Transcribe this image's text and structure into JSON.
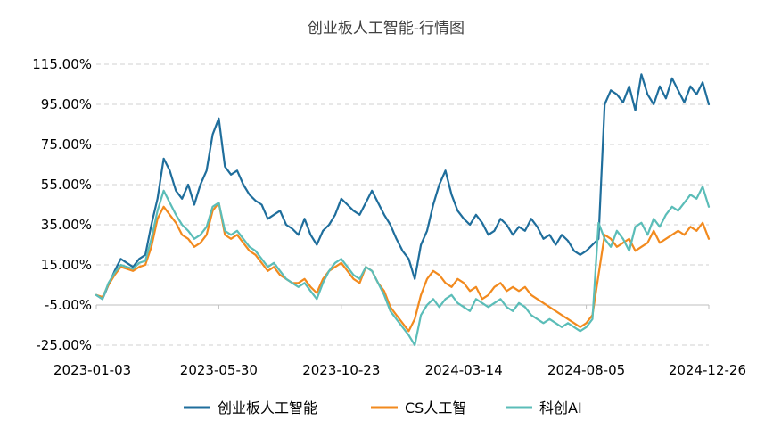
{
  "chart_data": {
    "type": "line",
    "title": "创业板人工智能-行情图",
    "xlabel": "",
    "ylabel": "",
    "ylim": [
      -25,
      115
    ],
    "ytick_values": [
      115,
      95,
      75,
      55,
      35,
      15,
      -5,
      -25
    ],
    "ytick_labels": [
      "115.00%",
      "95.00%",
      "75.00%",
      "55.00%",
      "35.00%",
      "15.00%",
      "-5.00%",
      "-25.00%"
    ],
    "xlim": [
      0,
      100
    ],
    "xtick_values": [
      0,
      20,
      40,
      60,
      80,
      100
    ],
    "xtick_labels": [
      "2023-01-03",
      "2023-05-30",
      "2023-10-23",
      "2024-03-14",
      "2024-08-05",
      "2024-12-26"
    ],
    "legend_position": "bottom",
    "grid": "horizontal-dashed",
    "series": [
      {
        "name": "创业板人工智能",
        "color": "#1f6e9c",
        "x": [
          0,
          1,
          2,
          3,
          4,
          5,
          6,
          7,
          8,
          9,
          10,
          11,
          12,
          13,
          14,
          15,
          16,
          17,
          18,
          19,
          20,
          21,
          22,
          23,
          24,
          25,
          26,
          27,
          28,
          29,
          30,
          31,
          32,
          33,
          34,
          35,
          36,
          37,
          38,
          39,
          40,
          41,
          42,
          43,
          44,
          45,
          46,
          47,
          48,
          49,
          50,
          51,
          52,
          53,
          54,
          55,
          56,
          57,
          58,
          59,
          60,
          61,
          62,
          63,
          64,
          65,
          66,
          67,
          68,
          69,
          70,
          71,
          72,
          73,
          74,
          75,
          76,
          77,
          78,
          79,
          80,
          81,
          82,
          83,
          84,
          85,
          86,
          87,
          88,
          89,
          90,
          91,
          92,
          93,
          94,
          95,
          96,
          97,
          98,
          99,
          100
        ],
        "values": [
          0,
          -2,
          5,
          12,
          18,
          16,
          14,
          18,
          20,
          35,
          48,
          68,
          62,
          52,
          48,
          55,
          45,
          55,
          62,
          80,
          88,
          64,
          60,
          62,
          55,
          50,
          47,
          45,
          38,
          40,
          42,
          35,
          33,
          30,
          38,
          30,
          25,
          32,
          35,
          40,
          48,
          45,
          42,
          40,
          46,
          52,
          46,
          40,
          35,
          28,
          22,
          18,
          8,
          25,
          32,
          45,
          55,
          62,
          50,
          42,
          38,
          35,
          40,
          36,
          30,
          32,
          38,
          35,
          30,
          34,
          32,
          38,
          34,
          28,
          30,
          25,
          30,
          27,
          22,
          20,
          22,
          25,
          28,
          95,
          102,
          100,
          96,
          104,
          92,
          110,
          100,
          95,
          104,
          98,
          108,
          102,
          96,
          104,
          100,
          106,
          95
        ]
      },
      {
        "name": "CS人工智",
        "color": "#f28a1e",
        "x": [
          0,
          1,
          2,
          3,
          4,
          5,
          6,
          7,
          8,
          9,
          10,
          11,
          12,
          13,
          14,
          15,
          16,
          17,
          18,
          19,
          20,
          21,
          22,
          23,
          24,
          25,
          26,
          27,
          28,
          29,
          30,
          31,
          32,
          33,
          34,
          35,
          36,
          37,
          38,
          39,
          40,
          41,
          42,
          43,
          44,
          45,
          46,
          47,
          48,
          49,
          50,
          51,
          52,
          53,
          54,
          55,
          56,
          57,
          58,
          59,
          60,
          61,
          62,
          63,
          64,
          65,
          66,
          67,
          68,
          69,
          70,
          71,
          72,
          73,
          74,
          75,
          76,
          77,
          78,
          79,
          80,
          81,
          82,
          83,
          84,
          85,
          86,
          87,
          88,
          89,
          90,
          91,
          92,
          93,
          94,
          95,
          96,
          97,
          98,
          99,
          100
        ],
        "values": [
          0,
          -1,
          5,
          10,
          14,
          13,
          12,
          14,
          15,
          24,
          38,
          44,
          40,
          36,
          30,
          28,
          24,
          26,
          30,
          42,
          46,
          30,
          28,
          30,
          26,
          22,
          20,
          16,
          12,
          14,
          10,
          8,
          6,
          6,
          8,
          4,
          1,
          8,
          12,
          14,
          16,
          12,
          8,
          6,
          14,
          12,
          6,
          2,
          -6,
          -10,
          -14,
          -18,
          -12,
          0,
          8,
          12,
          10,
          6,
          4,
          8,
          6,
          2,
          4,
          -2,
          0,
          4,
          6,
          2,
          4,
          2,
          4,
          0,
          -2,
          -4,
          -6,
          -8,
          -10,
          -12,
          -14,
          -16,
          -14,
          -10,
          10,
          30,
          28,
          24,
          26,
          28,
          22,
          24,
          26,
          32,
          26,
          28,
          30,
          32,
          30,
          34,
          32,
          36,
          28
        ]
      },
      {
        "name": "科创AI",
        "color": "#5bbdb8",
        "x": [
          0,
          1,
          2,
          3,
          4,
          5,
          6,
          7,
          8,
          9,
          10,
          11,
          12,
          13,
          14,
          15,
          16,
          17,
          18,
          19,
          20,
          21,
          22,
          23,
          24,
          25,
          26,
          27,
          28,
          29,
          30,
          31,
          32,
          33,
          34,
          35,
          36,
          37,
          38,
          39,
          40,
          41,
          42,
          43,
          44,
          45,
          46,
          47,
          48,
          49,
          50,
          51,
          52,
          53,
          54,
          55,
          56,
          57,
          58,
          59,
          60,
          61,
          62,
          63,
          64,
          65,
          66,
          67,
          68,
          69,
          70,
          71,
          72,
          73,
          74,
          75,
          76,
          77,
          78,
          79,
          80,
          81,
          82,
          83,
          84,
          85,
          86,
          87,
          88,
          89,
          90,
          91,
          92,
          93,
          94,
          95,
          96,
          97,
          98,
          99,
          100
        ],
        "values": [
          0,
          -2,
          6,
          11,
          15,
          14,
          13,
          16,
          17,
          28,
          42,
          52,
          46,
          40,
          35,
          32,
          28,
          30,
          34,
          44,
          46,
          32,
          30,
          32,
          28,
          24,
          22,
          18,
          14,
          16,
          12,
          8,
          6,
          4,
          6,
          2,
          -2,
          6,
          12,
          16,
          18,
          14,
          10,
          8,
          14,
          12,
          6,
          0,
          -8,
          -12,
          -16,
          -20,
          -25,
          -10,
          -5,
          -2,
          -6,
          -2,
          0,
          -4,
          -6,
          -8,
          -2,
          -4,
          -6,
          -4,
          -2,
          -6,
          -8,
          -4,
          -6,
          -10,
          -12,
          -14,
          -12,
          -14,
          -16,
          -14,
          -16,
          -18,
          -16,
          -12,
          36,
          28,
          24,
          32,
          28,
          22,
          34,
          36,
          30,
          38,
          34,
          40,
          44,
          42,
          46,
          50,
          48,
          54,
          44
        ]
      }
    ]
  }
}
